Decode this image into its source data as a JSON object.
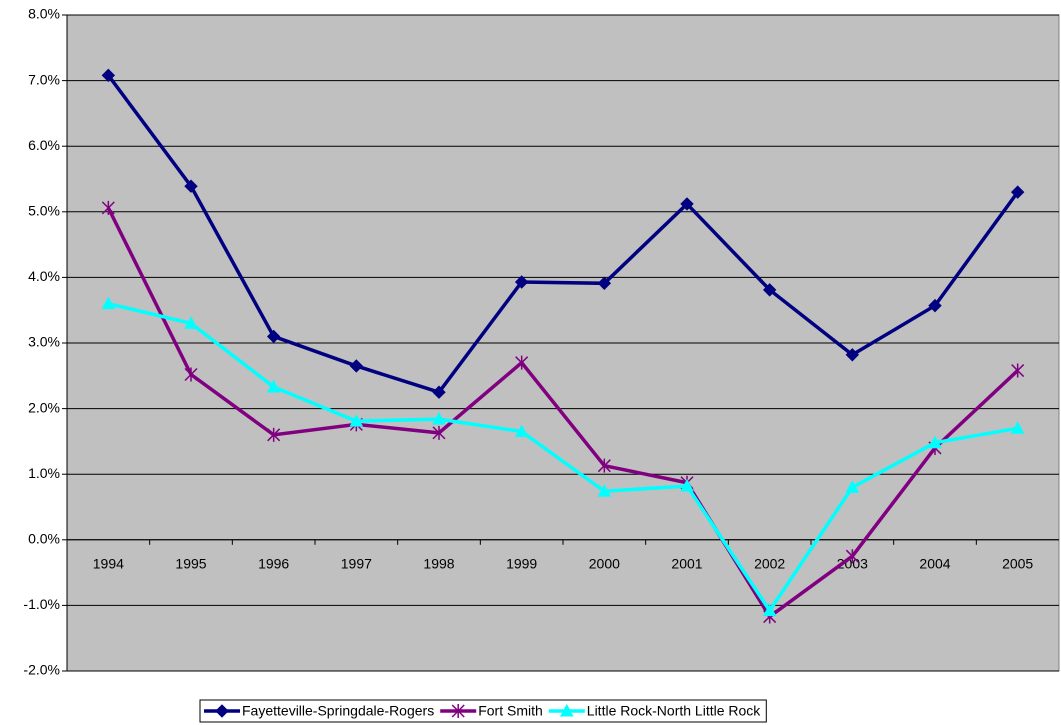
{
  "chart_data": {
    "type": "line",
    "categories": [
      "1994",
      "1995",
      "1996",
      "1997",
      "1998",
      "1999",
      "2000",
      "2001",
      "2002",
      "2003",
      "2004",
      "2005"
    ],
    "series": [
      {
        "name": "Fayetteville-Springdale-Rogers",
        "color": "#000080",
        "marker": "diamond",
        "values": [
          7.08,
          5.39,
          3.1,
          2.65,
          2.25,
          3.93,
          3.91,
          5.12,
          3.81,
          2.82,
          3.57,
          5.3
        ]
      },
      {
        "name": "Fort Smith",
        "color": "#800080",
        "marker": "star",
        "values": [
          5.06,
          2.52,
          1.6,
          1.76,
          1.63,
          2.7,
          1.13,
          0.87,
          -1.17,
          -0.25,
          1.4,
          2.58
        ]
      },
      {
        "name": "Little Rock-North Little Rock",
        "color": "#00ffff",
        "marker": "triangle",
        "values": [
          3.6,
          3.3,
          2.33,
          1.81,
          1.84,
          1.65,
          0.74,
          0.82,
          -1.08,
          0.8,
          1.48,
          1.7
        ]
      }
    ],
    "ylim": [
      -2,
      8
    ],
    "yticks": [
      {
        "value": -2,
        "label": "-2.0%"
      },
      {
        "value": -1,
        "label": "-1.0%"
      },
      {
        "value": 0,
        "label": "0.0%"
      },
      {
        "value": 1,
        "label": "1.0%"
      },
      {
        "value": 2,
        "label": "2.0%"
      },
      {
        "value": 3,
        "label": "3.0%"
      },
      {
        "value": 4,
        "label": "4.0%"
      },
      {
        "value": 5,
        "label": "5.0%"
      },
      {
        "value": 6,
        "label": "6.0%"
      },
      {
        "value": 7,
        "label": "7.0%"
      },
      {
        "value": 8,
        "label": "8.0%"
      }
    ],
    "grid": true,
    "legend": "bottom",
    "background": "#c0c0c0"
  }
}
